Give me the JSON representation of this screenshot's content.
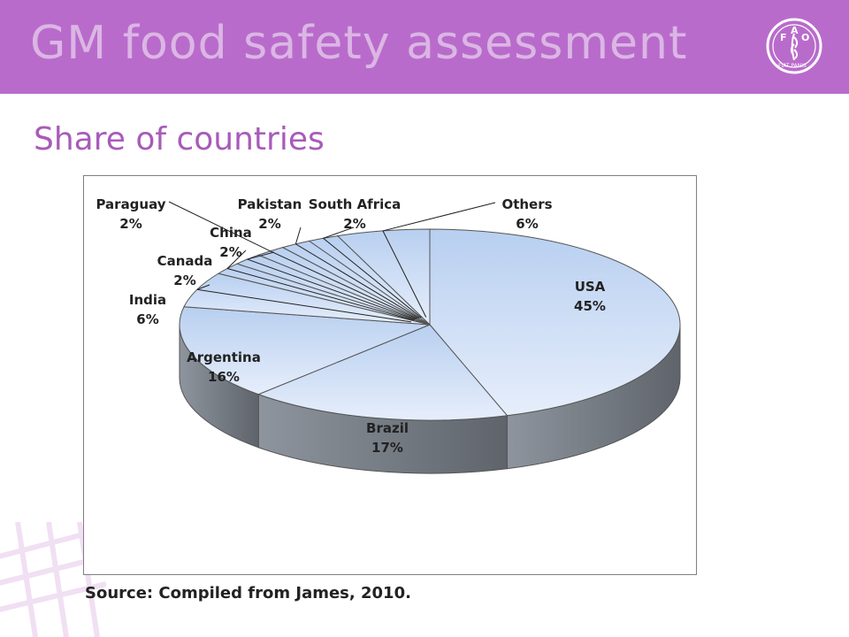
{
  "header": {
    "title": "GM food safety assessment"
  },
  "logo": {
    "letters": [
      "F",
      "A",
      "O"
    ],
    "motto": "FIAT PANIS"
  },
  "slide": {
    "title": "Share of countries"
  },
  "chart_data": {
    "type": "pie",
    "title": "",
    "slices": [
      {
        "label": "USA",
        "value": 45,
        "value_label": "45%"
      },
      {
        "label": "Brazil",
        "value": 17,
        "value_label": "17%"
      },
      {
        "label": "Argentina",
        "value": 16,
        "value_label": "16%"
      },
      {
        "label": "India",
        "value": 6,
        "value_label": "6%"
      },
      {
        "label": "Canada",
        "value": 2,
        "value_label": "2%"
      },
      {
        "label": "China",
        "value": 2,
        "value_label": "2%"
      },
      {
        "label": "Paraguay",
        "value": 2,
        "value_label": "2%"
      },
      {
        "label": "Pakistan",
        "value": 2,
        "value_label": "2%"
      },
      {
        "label": "South Africa",
        "value": 2,
        "value_label": "2%"
      },
      {
        "label": "Others",
        "value": 6,
        "value_label": "6%"
      }
    ],
    "style": "3d",
    "legend": "none",
    "colors": {
      "top": "#b8cff0",
      "top_light": "#e6eefb",
      "side": "#8e959e",
      "side_dark": "#5f646b",
      "edge": "#555555"
    }
  },
  "source": {
    "text": "Source: Compiled from James, 2010."
  }
}
